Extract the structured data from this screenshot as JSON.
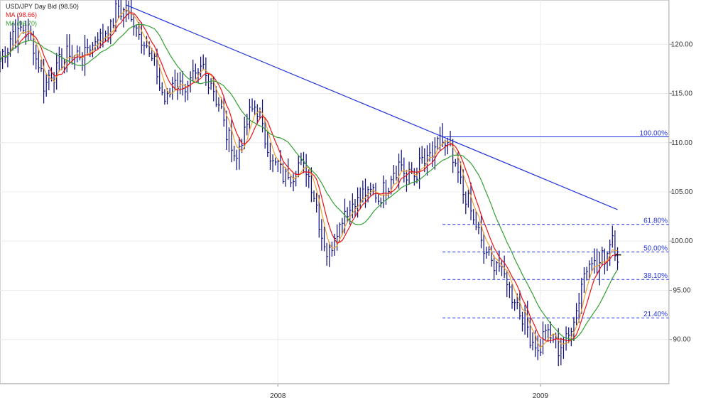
{
  "chart_data": {
    "type": "line",
    "title": "USD/JPY Day Bid (98.50)",
    "legend": [
      {
        "label": "MA (98.66)",
        "color": "#ee1111"
      },
      {
        "label": "MA (96.70)",
        "color": "#33a033"
      },
      {
        "label": "",
        "color": "#f0a030"
      }
    ],
    "ylim": [
      85.5,
      124.5
    ],
    "y_ticks": [
      {
        "value": 90,
        "label": "90.00"
      },
      {
        "value": 95,
        "label": "95.00"
      },
      {
        "value": 100,
        "label": "100.00"
      },
      {
        "value": 105,
        "label": "105.00"
      },
      {
        "value": 110,
        "label": "110.00"
      },
      {
        "value": 115,
        "label": "115.00"
      },
      {
        "value": 120,
        "label": "120.00"
      }
    ],
    "x_ticks": [
      {
        "value": 108,
        "label": "2008"
      },
      {
        "value": 210,
        "label": "2009"
      }
    ],
    "x_domain": [
      0,
      260
    ],
    "price_keypoints": [
      [
        0,
        118.3
      ],
      [
        5,
        121.0
      ],
      [
        10,
        121.5
      ],
      [
        13,
        119.8
      ],
      [
        17,
        116.0
      ],
      [
        22,
        117.5
      ],
      [
        26,
        119.0
      ],
      [
        32,
        118.7
      ],
      [
        37,
        120.5
      ],
      [
        42,
        121.3
      ],
      [
        46,
        123.8
      ],
      [
        50,
        123.0
      ],
      [
        53,
        121.8
      ],
      [
        57,
        119.8
      ],
      [
        61,
        117.0
      ],
      [
        64,
        114.0
      ],
      [
        68,
        116.5
      ],
      [
        72,
        115.5
      ],
      [
        75,
        116.2
      ],
      [
        79,
        117.5
      ],
      [
        82,
        116.0
      ],
      [
        85,
        114.0
      ],
      [
        88,
        111.0
      ],
      [
        92,
        108.5
      ],
      [
        96,
        112.0
      ],
      [
        99,
        114.0
      ],
      [
        102,
        111.5
      ],
      [
        105,
        108.5
      ],
      [
        108,
        107.5
      ],
      [
        111,
        106.5
      ],
      [
        114,
        107.0
      ],
      [
        117,
        108.0
      ],
      [
        121,
        106.0
      ],
      [
        124,
        102.0
      ],
      [
        127,
        98.5
      ],
      [
        130,
        100.5
      ],
      [
        133,
        102.5
      ],
      [
        136,
        103.5
      ],
      [
        140,
        104.5
      ],
      [
        144,
        105.0
      ],
      [
        148,
        104.5
      ],
      [
        152,
        106.5
      ],
      [
        155,
        108.0
      ],
      [
        158,
        106.5
      ],
      [
        161,
        106.8
      ],
      [
        164,
        108.0
      ],
      [
        168,
        108.5
      ],
      [
        171,
        110.5
      ],
      [
        175,
        109.0
      ],
      [
        178,
        106.5
      ],
      [
        181,
        104.5
      ],
      [
        185,
        101.5
      ],
      [
        188,
        99.0
      ],
      [
        191,
        98.0
      ],
      [
        194,
        97.5
      ],
      [
        197,
        95.8
      ],
      [
        200,
        94.0
      ],
      [
        203,
        92.5
      ],
      [
        206,
        90.5
      ],
      [
        209,
        88.7
      ],
      [
        212,
        91.0
      ],
      [
        214,
        90.2
      ],
      [
        217,
        89.2
      ],
      [
        220,
        90.0
      ],
      [
        223,
        92.0
      ],
      [
        226,
        95.5
      ],
      [
        229,
        98.5
      ],
      [
        232,
        97.2
      ],
      [
        235,
        98.5
      ],
      [
        238,
        100.5
      ],
      [
        240,
        98.6
      ]
    ],
    "trendline": {
      "from": [
        49,
        124.0
      ],
      "to": [
        240,
        103.2
      ]
    },
    "fibonacci": {
      "x_start": 172,
      "levels": [
        {
          "value": 110.6,
          "label": "100.00%",
          "style": "solid"
        },
        {
          "value": 101.7,
          "label": "61.80%",
          "style": "dashed"
        },
        {
          "value": 98.9,
          "label": "50.00%",
          "style": "dashed"
        },
        {
          "value": 96.1,
          "label": "38.10%",
          "style": "dashed"
        },
        {
          "value": 92.2,
          "label": "21.40%",
          "style": "dashed"
        }
      ]
    },
    "grid": true
  }
}
